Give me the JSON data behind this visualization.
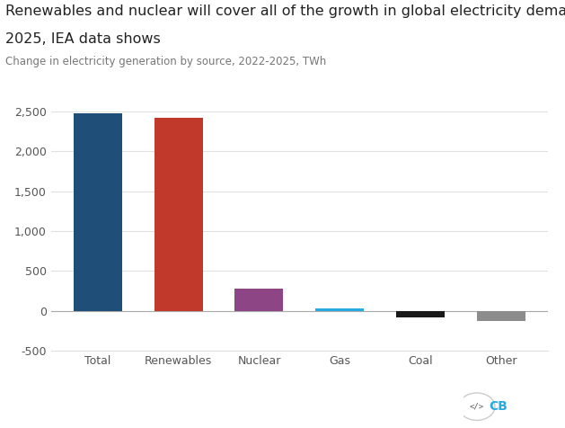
{
  "categories": [
    "Total",
    "Renewables",
    "Nuclear",
    "Gas",
    "Coal",
    "Other"
  ],
  "values": [
    2480,
    2420,
    280,
    30,
    -80,
    -120
  ],
  "colors": [
    "#1f4e79",
    "#c0392b",
    "#8e4585",
    "#27a9e1",
    "#1a1a1a",
    "#8c8c8c"
  ],
  "title_line1": "Renewables and nuclear will cover all of the growth in global electricity demand up to",
  "title_line2": "2025, IEA data shows",
  "subtitle": "Change in electricity generation by source, 2022-2025, TWh",
  "ylim": [
    -500,
    2500
  ],
  "yticks": [
    -500,
    0,
    500,
    1000,
    1500,
    2000,
    2500
  ],
  "title_fontsize": 11.5,
  "subtitle_fontsize": 8.5,
  "tick_fontsize": 9,
  "background_color": "#ffffff",
  "grid_color": "#e0e0e0",
  "tick_color": "#555555"
}
